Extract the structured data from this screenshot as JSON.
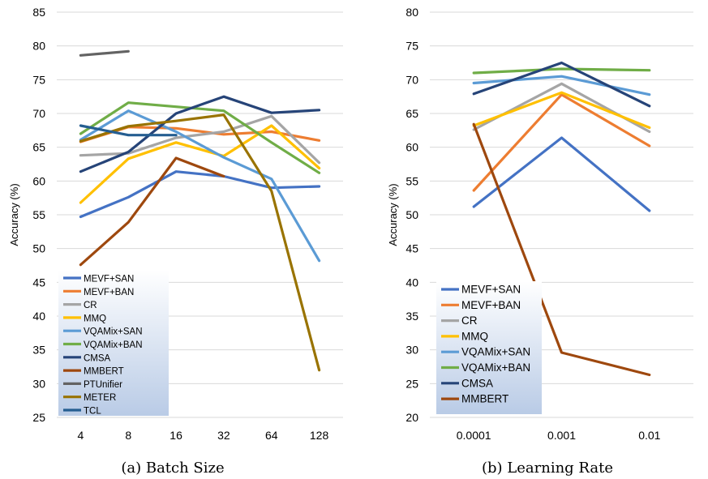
{
  "chart_data": [
    {
      "type": "line",
      "caption": "(a) Batch Size",
      "ylabel": "Accuracy (%)",
      "xlabel": "",
      "categories": [
        "4",
        "8",
        "16",
        "32",
        "64",
        "128"
      ],
      "ylim": [
        25,
        85
      ],
      "yticks": [
        25,
        30,
        35,
        40,
        45,
        50,
        55,
        60,
        65,
        70,
        75,
        80,
        85
      ],
      "grid": true,
      "legend_position": "bottom-left",
      "series": [
        {
          "name": "MEVF+SAN",
          "color": "#4472C4",
          "values": [
            54.7,
            57.6,
            61.4,
            60.7,
            59.0,
            59.2
          ]
        },
        {
          "name": "MEVF+BAN",
          "color": "#ED7D31",
          "values": [
            65.8,
            68.0,
            67.8,
            66.9,
            67.3,
            66.0
          ]
        },
        {
          "name": "CR",
          "color": "#A5A5A5",
          "values": [
            63.8,
            64.1,
            66.4,
            67.3,
            69.6,
            62.7
          ]
        },
        {
          "name": "MMQ",
          "color": "#FFC000",
          "values": [
            56.8,
            63.3,
            65.7,
            63.7,
            68.2,
            61.9
          ]
        },
        {
          "name": "VQAMix+SAN",
          "color": "#5B9BD5",
          "values": [
            66.1,
            70.4,
            67.3,
            63.5,
            60.3,
            48.2
          ]
        },
        {
          "name": "VQAMix+BAN",
          "color": "#70AD47",
          "values": [
            67.0,
            71.6,
            71.0,
            70.4,
            65.7,
            61.2
          ]
        },
        {
          "name": "CMSA",
          "color": "#264478",
          "values": [
            61.4,
            64.3,
            70.0,
            72.5,
            70.1,
            70.5
          ]
        },
        {
          "name": "MMBERT",
          "color": "#9E480E",
          "values": [
            47.6,
            53.9,
            63.4,
            60.7,
            null,
            null
          ]
        },
        {
          "name": "PTUnifier",
          "color": "#636363",
          "values": [
            78.6,
            79.2,
            null,
            null,
            null,
            null
          ]
        },
        {
          "name": "METER",
          "color": "#997300",
          "values": [
            65.9,
            68.1,
            68.9,
            69.8,
            58.5,
            32.0
          ]
        },
        {
          "name": "TCL",
          "color": "#255E91",
          "values": [
            68.2,
            66.8,
            66.8,
            null,
            null,
            null
          ]
        }
      ]
    },
    {
      "type": "line",
      "caption": "(b) Learning Rate",
      "ylabel": "Accuracy (%)",
      "xlabel": "",
      "categories": [
        "0.0001",
        "0.001",
        "0.01"
      ],
      "ylim": [
        20,
        80
      ],
      "yticks": [
        20,
        25,
        30,
        35,
        40,
        45,
        50,
        55,
        60,
        65,
        70,
        75,
        80
      ],
      "grid": true,
      "legend_position": "bottom-left",
      "series": [
        {
          "name": "MEVF+SAN",
          "color": "#4472C4",
          "values": [
            51.2,
            61.4,
            50.6
          ]
        },
        {
          "name": "MEVF+BAN",
          "color": "#ED7D31",
          "values": [
            53.6,
            67.8,
            60.2
          ]
        },
        {
          "name": "CR",
          "color": "#A5A5A5",
          "values": [
            62.6,
            69.4,
            62.3
          ]
        },
        {
          "name": "MMQ",
          "color": "#FFC000",
          "values": [
            63.2,
            68.1,
            62.9
          ]
        },
        {
          "name": "VQAMix+SAN",
          "color": "#5B9BD5",
          "values": [
            69.5,
            70.5,
            67.8
          ]
        },
        {
          "name": "VQAMix+BAN",
          "color": "#70AD47",
          "values": [
            71.0,
            71.6,
            71.4
          ]
        },
        {
          "name": "CMSA",
          "color": "#264478",
          "values": [
            67.9,
            72.5,
            66.1
          ]
        },
        {
          "name": "MMBERT",
          "color": "#9E480E",
          "values": [
            63.4,
            29.6,
            26.3
          ]
        }
      ]
    }
  ]
}
